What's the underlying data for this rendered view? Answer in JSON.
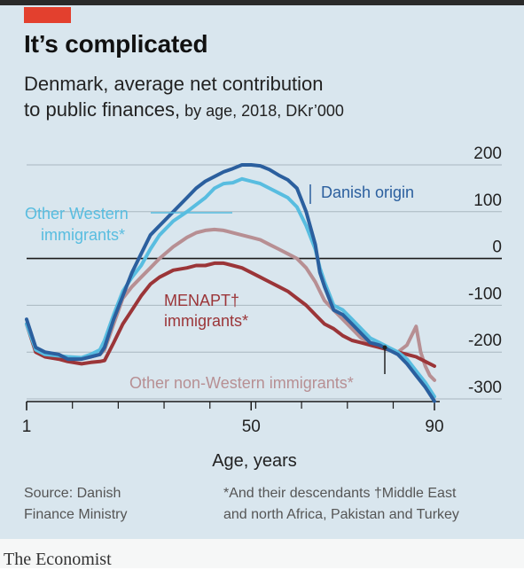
{
  "header": {
    "title": "It’s complicated",
    "subtitle_main_1": "Denmark, average net contribution",
    "subtitle_main_2": "to public finances,",
    "subtitle_meta": " by age, 2018, DKr’000"
  },
  "footer": {
    "source_1": "Source: Danish",
    "source_2": "Finance Ministry",
    "note_1": "*And their descendants  †Middle East",
    "note_2": "and north Africa, Pakistan and Turkey",
    "brand": "The Economist"
  },
  "colors": {
    "background": "#d9e6ee",
    "accent_tag": "#e3402e",
    "danish_origin": "#2b5f9e",
    "other_western": "#58bde0",
    "other_non_western": "#b78f93",
    "menapt": "#9b3538"
  },
  "chart_data": {
    "type": "line",
    "xlabel": "Age, years",
    "ylabel": "",
    "x_ticks": [
      1,
      50,
      90
    ],
    "y_ticks": [
      200,
      100,
      0,
      -100,
      -200,
      -300
    ],
    "xlim": [
      1,
      90
    ],
    "ylim": [
      -300,
      200
    ],
    "grid": true,
    "series": [
      {
        "name": "Danish origin",
        "label": "Danish origin",
        "color": "#2b5f9e",
        "x": [
          1,
          3,
          5,
          8,
          10,
          13,
          15,
          17,
          18,
          20,
          22,
          24,
          26,
          28,
          30,
          33,
          36,
          38,
          40,
          42,
          44,
          46,
          48,
          50,
          52,
          54,
          56,
          58,
          60,
          62,
          64,
          65,
          66,
          68,
          70,
          72,
          74,
          76,
          78,
          80,
          82,
          84,
          86,
          88,
          90
        ],
        "y": [
          -130,
          -190,
          -200,
          -205,
          -215,
          -215,
          -210,
          -205,
          -190,
          -130,
          -80,
          -30,
          10,
          50,
          70,
          100,
          130,
          150,
          165,
          175,
          185,
          192,
          200,
          200,
          198,
          190,
          178,
          168,
          150,
          100,
          30,
          -30,
          -60,
          -110,
          -120,
          -140,
          -160,
          -180,
          -185,
          -195,
          -205,
          -225,
          -250,
          -275,
          -305
        ]
      },
      {
        "name": "Other Western immigrants*",
        "label_1": "Other Western",
        "label_2": "immigrants*",
        "color": "#58bde0",
        "x": [
          1,
          3,
          5,
          8,
          10,
          13,
          15,
          17,
          18,
          20,
          22,
          24,
          26,
          28,
          30,
          33,
          36,
          38,
          40,
          42,
          44,
          46,
          48,
          50,
          52,
          54,
          56,
          58,
          60,
          62,
          64,
          65,
          66,
          68,
          70,
          72,
          74,
          76,
          78,
          80,
          82,
          84,
          86,
          88,
          90
        ],
        "y": [
          -140,
          -195,
          -205,
          -208,
          -210,
          -212,
          -205,
          -195,
          -175,
          -120,
          -70,
          -40,
          -15,
          20,
          50,
          80,
          100,
          115,
          130,
          150,
          160,
          162,
          170,
          165,
          160,
          150,
          140,
          130,
          110,
          70,
          20,
          -20,
          -50,
          -100,
          -110,
          -130,
          -150,
          -170,
          -180,
          -190,
          -200,
          -215,
          -240,
          -265,
          -295
        ]
      },
      {
        "name": "Other non-Western immigrants*",
        "label": "Other non-Western immigrants*",
        "color": "#b78f93",
        "x": [
          1,
          3,
          5,
          8,
          10,
          13,
          15,
          17,
          18,
          20,
          22,
          24,
          26,
          28,
          30,
          33,
          36,
          38,
          40,
          42,
          44,
          46,
          48,
          50,
          52,
          54,
          56,
          58,
          60,
          62,
          64,
          66,
          68,
          70,
          72,
          74,
          76,
          78,
          80,
          82,
          84,
          86,
          87,
          88,
          89,
          90
        ],
        "y": [
          -140,
          -195,
          -205,
          -210,
          -213,
          -213,
          -210,
          -205,
          -195,
          -140,
          -85,
          -60,
          -40,
          -20,
          0,
          25,
          45,
          55,
          60,
          62,
          60,
          55,
          50,
          45,
          40,
          30,
          20,
          10,
          0,
          -20,
          -50,
          -90,
          -110,
          -130,
          -150,
          -170,
          -180,
          -190,
          -195,
          -200,
          -185,
          -145,
          -200,
          -230,
          -250,
          -260
        ]
      },
      {
        "name": "MENAPT† immigrants*",
        "label_1": "MENAPT†",
        "label_2": "immigrants*",
        "color": "#9b3538",
        "x": [
          1,
          3,
          5,
          8,
          10,
          13,
          15,
          17,
          18,
          20,
          22,
          24,
          26,
          28,
          30,
          33,
          36,
          38,
          40,
          42,
          44,
          46,
          48,
          50,
          52,
          54,
          56,
          58,
          60,
          62,
          64,
          66,
          68,
          70,
          72,
          74,
          76,
          78,
          80,
          82,
          84,
          86,
          88,
          90
        ],
        "y": [
          -140,
          -200,
          -210,
          -215,
          -220,
          -225,
          -222,
          -220,
          -218,
          -180,
          -140,
          -110,
          -80,
          -55,
          -40,
          -25,
          -20,
          -15,
          -15,
          -10,
          -10,
          -15,
          -20,
          -30,
          -40,
          -50,
          -60,
          -70,
          -85,
          -100,
          -120,
          -140,
          -150,
          -165,
          -175,
          -180,
          -185,
          -190,
          -195,
          -200,
          -205,
          -210,
          -220,
          -230
        ]
      }
    ]
  }
}
